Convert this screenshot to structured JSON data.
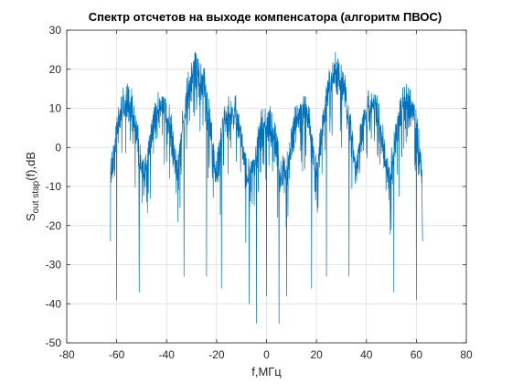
{
  "chart_data": {
    "type": "line",
    "title": "Спектр отсчетов на выходе компенсатора (алгоритм ПВОС)",
    "xlabel": "f,МГц",
    "ylabel_main": "S",
    "ylabel_sub": "out stap",
    "ylabel_rest": "(f),dB",
    "xlim": [
      -80,
      80
    ],
    "ylim": [
      -50,
      30
    ],
    "x_ticks": [
      -80,
      -60,
      -40,
      -20,
      0,
      20,
      40,
      60,
      80
    ],
    "y_ticks": [
      -50,
      -40,
      -30,
      -20,
      -10,
      0,
      10,
      20,
      30
    ],
    "grid": true,
    "line_color": "#0072BD",
    "series": [
      {
        "x_range": [
          -62.5,
          62.5
        ],
        "envelope_peaks": [
          {
            "x": -56,
            "y": 14
          },
          {
            "x": -42,
            "y": 13
          },
          {
            "x": -28,
            "y": 22
          },
          {
            "x": -14,
            "y": 12
          },
          {
            "x": 0,
            "y": 9
          },
          {
            "x": 14,
            "y": 12
          },
          {
            "x": 28,
            "y": 22
          },
          {
            "x": 42,
            "y": 13
          },
          {
            "x": 56,
            "y": 14
          }
        ],
        "deep_nulls": [
          {
            "x": -60,
            "y": -39
          },
          {
            "x": -51,
            "y": -37
          },
          {
            "x": -33,
            "y": -33
          },
          {
            "x": -24,
            "y": -33
          },
          {
            "x": -18,
            "y": -36
          },
          {
            "x": -7,
            "y": -40
          },
          {
            "x": -4,
            "y": -45
          },
          {
            "x": 0,
            "y": -38
          },
          {
            "x": 5,
            "y": -45
          },
          {
            "x": 8,
            "y": -38
          },
          {
            "x": 18,
            "y": -36
          },
          {
            "x": 24,
            "y": -33
          },
          {
            "x": 33,
            "y": -33
          },
          {
            "x": 51,
            "y": -37
          },
          {
            "x": 60,
            "y": -39
          }
        ],
        "base_level_range": [
          -15,
          2
        ]
      }
    ]
  }
}
